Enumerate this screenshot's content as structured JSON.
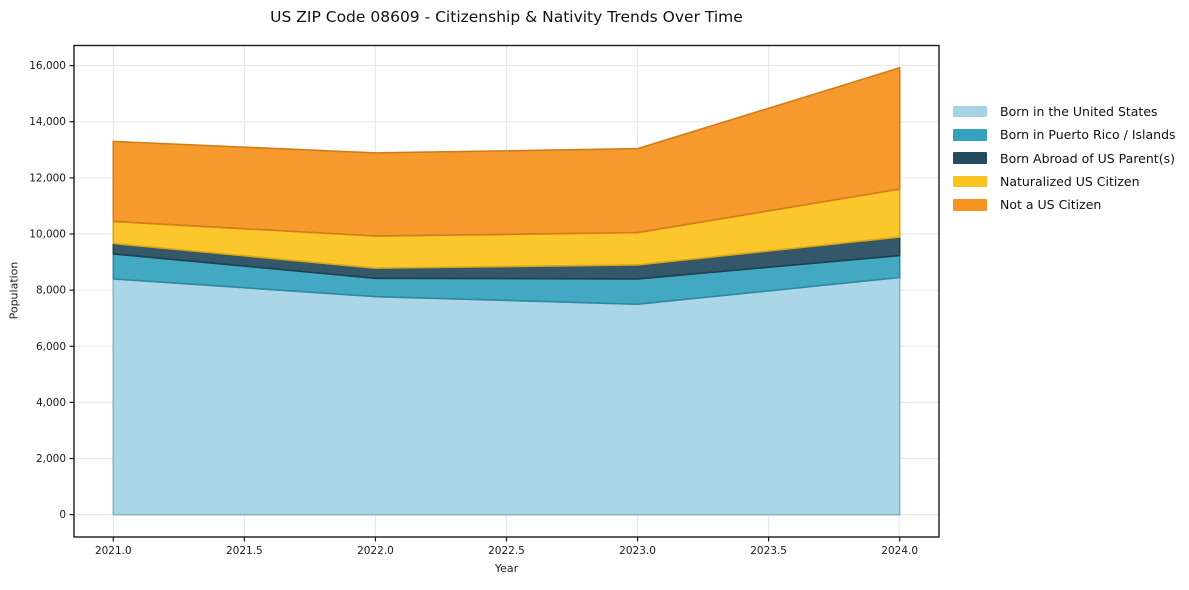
{
  "chart_data": {
    "type": "area",
    "stacked": true,
    "title": "US ZIP Code 08609 - Citizenship & Nativity Trends Over Time",
    "xlabel": "Year",
    "ylabel": "Population",
    "x": [
      2021,
      2022,
      2023,
      2024
    ],
    "series": [
      {
        "name": "Born in the United States",
        "color": "#a5d3e5",
        "values": [
          8400,
          7770,
          7500,
          8450
        ]
      },
      {
        "name": "Born in Puerto Rico / Islands",
        "color": "#35a2bd",
        "values": [
          890,
          650,
          900,
          780
        ]
      },
      {
        "name": "Born Abroad of US Parent(s)",
        "color": "#254b5e",
        "values": [
          370,
          360,
          500,
          660
        ]
      },
      {
        "name": "Naturalized US Citizen",
        "color": "#fcc21d",
        "values": [
          790,
          1150,
          1150,
          1710
        ]
      },
      {
        "name": "Not a US Citizen",
        "color": "#f6921e",
        "values": [
          2850,
          2960,
          2990,
          4320
        ]
      }
    ],
    "totals": [
      13300,
      12890,
      13040,
      15920
    ],
    "x_tick_values": [
      2021,
      2021.5,
      2022,
      2022.5,
      2023,
      2023.5,
      2024
    ],
    "x_tick_labels": [
      "2021.0",
      "2021.5",
      "2022.0",
      "2022.5",
      "2023.0",
      "2023.5",
      "2024.0"
    ],
    "y_tick_values": [
      0,
      2000,
      4000,
      6000,
      8000,
      10000,
      12000,
      14000,
      16000
    ],
    "y_tick_labels": [
      "0",
      "2,000",
      "4,000",
      "6,000",
      "8,000",
      "10,000",
      "12,000",
      "14,000",
      "16,000"
    ],
    "xlim": [
      2020.85,
      2024.15
    ],
    "ylim": [
      -796,
      16716
    ],
    "grid": true,
    "grid_color": "#e6e6e6",
    "spine_color": "#1a1a1a",
    "tick_label_color": "#1a1a1a",
    "background": "#ffffff",
    "legend_position": "right"
  }
}
